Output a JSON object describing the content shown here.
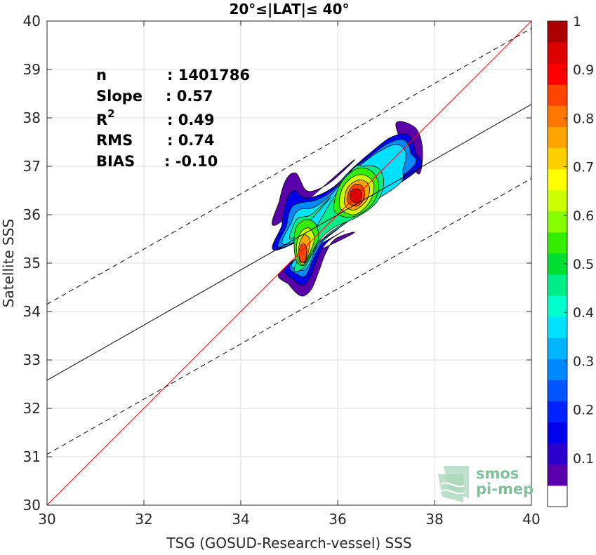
{
  "chart_data": {
    "type": "heatmap",
    "title": "20°≤|LAT|≤ 40°",
    "xlabel": "TSG (GOSUD-Research-vessel) SSS",
    "ylabel": "Satellite SSS",
    "xlim": [
      30,
      40
    ],
    "ylim": [
      30,
      40
    ],
    "x_ticks": [
      "30",
      "32",
      "34",
      "36",
      "38",
      "40"
    ],
    "y_ticks": [
      "30",
      "31",
      "32",
      "33",
      "34",
      "35",
      "36",
      "37",
      "38",
      "39",
      "40"
    ],
    "grid": true,
    "stats": [
      {
        "label": "n",
        "value": ": 1401786"
      },
      {
        "label": "Slope",
        "value": ": 0.57"
      },
      {
        "label": "R",
        "sup": "2",
        "value": ": 0.49"
      },
      {
        "label": "RMS",
        "value": ": 0.74"
      },
      {
        "label": "BIAS",
        "value": ": -0.10"
      }
    ],
    "lines": {
      "identity": {
        "x": [
          30,
          40
        ],
        "y": [
          30,
          40
        ],
        "color": "#ff0000"
      },
      "fit": {
        "x": [
          30,
          40
        ],
        "y": [
          32.58,
          38.28
        ],
        "color": "#000000"
      },
      "upper_bound": {
        "x": [
          30,
          40
        ],
        "y": [
          34.15,
          39.85
        ],
        "color": "#000000",
        "dash": true
      },
      "lower_bound": {
        "x": [
          30,
          40
        ],
        "y": [
          31.05,
          36.75
        ],
        "color": "#000000",
        "dash": true
      }
    },
    "density_peaks": [
      {
        "x": 36.4,
        "y": 36.42,
        "level": 0.95
      },
      {
        "x": 35.3,
        "y": 35.15,
        "level": 0.85
      }
    ],
    "density_contours": [
      {
        "level": 0.05,
        "points": [
          [
            34.85,
            34.85
          ],
          [
            35.0,
            34.55
          ],
          [
            35.25,
            34.32
          ],
          [
            35.45,
            34.45
          ],
          [
            35.6,
            34.8
          ],
          [
            35.75,
            35.2
          ],
          [
            35.95,
            35.5
          ],
          [
            36.3,
            35.6
          ],
          [
            36.8,
            35.85
          ],
          [
            37.3,
            36.3
          ],
          [
            37.65,
            36.85
          ],
          [
            37.75,
            37.35
          ],
          [
            37.6,
            37.8
          ],
          [
            37.2,
            37.85
          ],
          [
            36.8,
            37.45
          ],
          [
            36.3,
            37.1
          ],
          [
            35.95,
            36.75
          ],
          [
            35.65,
            36.55
          ],
          [
            35.35,
            36.5
          ],
          [
            35.15,
            36.85
          ],
          [
            34.95,
            36.75
          ],
          [
            34.8,
            36.3
          ],
          [
            34.75,
            35.8
          ],
          [
            34.75,
            35.2
          ]
        ]
      },
      {
        "level": 0.15,
        "points": [
          [
            34.95,
            34.95
          ],
          [
            35.1,
            34.65
          ],
          [
            35.3,
            34.55
          ],
          [
            35.45,
            34.75
          ],
          [
            35.6,
            35.15
          ],
          [
            35.8,
            35.45
          ],
          [
            36.1,
            35.65
          ],
          [
            36.6,
            35.9
          ],
          [
            37.1,
            36.35
          ],
          [
            37.5,
            36.8
          ],
          [
            37.6,
            37.3
          ],
          [
            37.45,
            37.65
          ],
          [
            37.1,
            37.6
          ],
          [
            36.7,
            37.3
          ],
          [
            36.3,
            36.95
          ],
          [
            35.95,
            36.6
          ],
          [
            35.6,
            36.4
          ],
          [
            35.3,
            36.35
          ],
          [
            35.1,
            36.5
          ],
          [
            34.95,
            36.3
          ],
          [
            34.85,
            35.8
          ],
          [
            34.85,
            35.3
          ]
        ]
      },
      {
        "level": 0.25,
        "points": [
          [
            35.05,
            35.0
          ],
          [
            35.2,
            34.75
          ],
          [
            35.35,
            34.75
          ],
          [
            35.5,
            35.1
          ],
          [
            35.7,
            35.45
          ],
          [
            36.0,
            35.7
          ],
          [
            36.5,
            35.95
          ],
          [
            37.0,
            36.4
          ],
          [
            37.4,
            36.85
          ],
          [
            37.5,
            37.3
          ],
          [
            37.35,
            37.55
          ],
          [
            37.0,
            37.45
          ],
          [
            36.6,
            37.15
          ],
          [
            36.2,
            36.85
          ],
          [
            35.9,
            36.5
          ],
          [
            35.55,
            36.3
          ],
          [
            35.25,
            36.25
          ],
          [
            35.05,
            36.15
          ],
          [
            34.95,
            35.8
          ],
          [
            34.95,
            35.35
          ]
        ]
      },
      {
        "level": 0.35,
        "points": [
          [
            35.1,
            35.05
          ],
          [
            35.25,
            34.85
          ],
          [
            35.4,
            34.95
          ],
          [
            35.55,
            35.3
          ],
          [
            35.8,
            35.6
          ],
          [
            36.2,
            35.85
          ],
          [
            36.7,
            36.1
          ],
          [
            37.1,
            36.5
          ],
          [
            37.35,
            36.95
          ],
          [
            37.4,
            37.3
          ],
          [
            37.2,
            37.45
          ],
          [
            36.85,
            37.3
          ],
          [
            36.5,
            37.05
          ],
          [
            36.15,
            36.75
          ],
          [
            35.85,
            36.4
          ],
          [
            35.5,
            36.15
          ],
          [
            35.2,
            36.1
          ],
          [
            35.05,
            35.85
          ],
          [
            35.0,
            35.4
          ]
        ]
      },
      {
        "level": 0.45,
        "points": [
          [
            35.15,
            35.0
          ],
          [
            35.3,
            34.9
          ],
          [
            35.45,
            35.15
          ],
          [
            35.65,
            35.5
          ],
          [
            35.95,
            35.75
          ],
          [
            36.4,
            35.95
          ],
          [
            36.8,
            36.25
          ],
          [
            36.95,
            36.65
          ],
          [
            36.85,
            36.95
          ],
          [
            36.55,
            37.0
          ],
          [
            36.2,
            36.8
          ],
          [
            35.85,
            36.35
          ],
          [
            35.45,
            36.0
          ],
          [
            35.15,
            35.9
          ],
          [
            35.05,
            35.5
          ]
        ]
      },
      {
        "level": 0.55,
        "points": [
          [
            35.15,
            35.05
          ],
          [
            35.3,
            34.95
          ],
          [
            35.45,
            35.2
          ],
          [
            35.6,
            35.5
          ],
          [
            35.55,
            35.8
          ],
          [
            35.35,
            35.9
          ],
          [
            35.15,
            35.75
          ],
          [
            35.1,
            35.4
          ],
          [
            35.95,
            36.05
          ],
          [
            36.3,
            35.95
          ],
          [
            36.7,
            36.2
          ],
          [
            36.85,
            36.6
          ],
          [
            36.7,
            36.9
          ],
          [
            36.4,
            36.95
          ],
          [
            36.1,
            36.7
          ],
          [
            35.95,
            36.35
          ]
        ]
      },
      {
        "level": 0.65,
        "points": [
          [
            35.2,
            35.05
          ],
          [
            35.3,
            34.98
          ],
          [
            35.42,
            35.2
          ],
          [
            35.52,
            35.5
          ],
          [
            35.42,
            35.72
          ],
          [
            35.25,
            35.65
          ],
          [
            35.15,
            35.35
          ],
          [
            36.05,
            36.15
          ],
          [
            36.35,
            36.0
          ],
          [
            36.65,
            36.25
          ],
          [
            36.75,
            36.6
          ],
          [
            36.6,
            36.8
          ],
          [
            36.35,
            36.8
          ],
          [
            36.1,
            36.55
          ]
        ]
      },
      {
        "level": 0.75,
        "points": [
          [
            35.22,
            35.05
          ],
          [
            35.32,
            35.02
          ],
          [
            35.4,
            35.25
          ],
          [
            35.42,
            35.5
          ],
          [
            35.3,
            35.58
          ],
          [
            35.2,
            35.35
          ],
          [
            36.15,
            36.2
          ],
          [
            36.35,
            36.1
          ],
          [
            36.6,
            36.3
          ],
          [
            36.65,
            36.6
          ],
          [
            36.45,
            36.72
          ],
          [
            36.2,
            36.55
          ]
        ]
      },
      {
        "level": 0.85,
        "points": [
          [
            35.23,
            35.05
          ],
          [
            35.33,
            35.05
          ],
          [
            35.36,
            35.3
          ],
          [
            35.28,
            35.4
          ],
          [
            35.2,
            35.25
          ],
          [
            36.22,
            36.25
          ],
          [
            36.4,
            36.18
          ],
          [
            36.55,
            36.35
          ],
          [
            36.52,
            36.58
          ],
          [
            36.35,
            36.62
          ],
          [
            36.22,
            36.45
          ]
        ]
      },
      {
        "level": 0.95,
        "points": [
          [
            36.28,
            36.3
          ],
          [
            36.42,
            36.24
          ],
          [
            36.5,
            36.38
          ],
          [
            36.45,
            36.52
          ],
          [
            36.32,
            36.52
          ],
          [
            36.26,
            36.42
          ]
        ]
      }
    ],
    "colorbar": {
      "range": [
        0,
        1
      ],
      "ticks": [
        "0.1",
        "0.2",
        "0.3",
        "0.4",
        "0.5",
        "0.6",
        "0.7",
        "0.8",
        "0.9",
        "1"
      ],
      "colors": [
        "#ffffff",
        "#5a00aa",
        "#2a00cc",
        "#0000ee",
        "#0022ff",
        "#0055ff",
        "#0088ff",
        "#00b4ff",
        "#00e0ff",
        "#00ffcc",
        "#00ee88",
        "#00dd33",
        "#33ee00",
        "#88ff00",
        "#ccff00",
        "#ffff00",
        "#ffd000",
        "#ffa500",
        "#ff7700",
        "#ff4400",
        "#ff0000",
        "#dd0000",
        "#aa0000"
      ]
    },
    "watermark": {
      "line1": "smos",
      "line2": "pi-mep"
    }
  }
}
